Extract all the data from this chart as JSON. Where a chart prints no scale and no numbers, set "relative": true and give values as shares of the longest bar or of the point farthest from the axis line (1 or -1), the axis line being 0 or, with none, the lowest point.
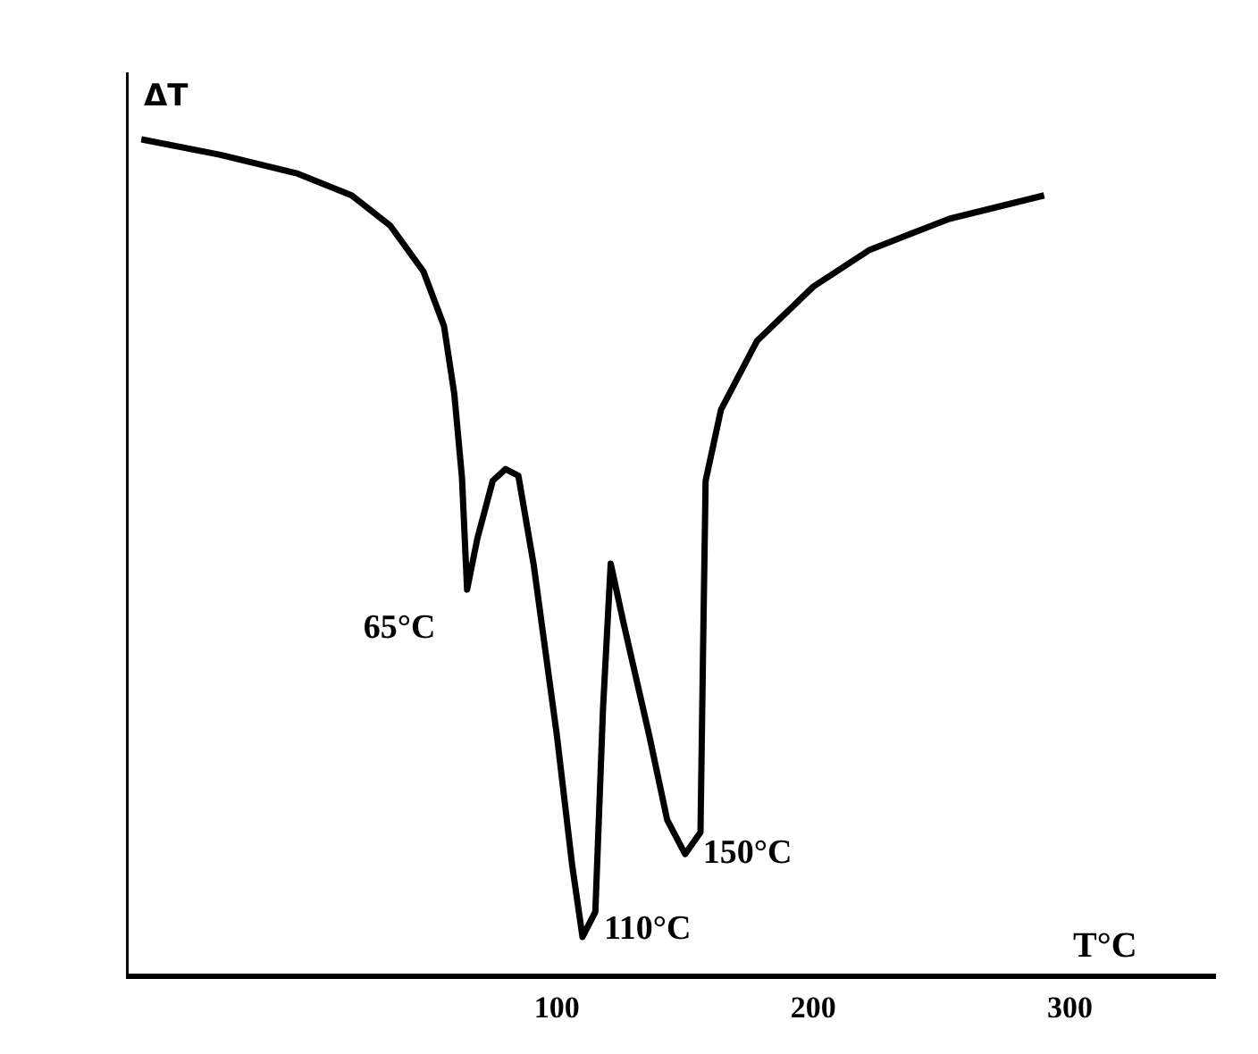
{
  "chart_data": {
    "type": "line",
    "relative": true,
    "xlabel": "T°C",
    "ylabel": "ΔT",
    "x": [
      -62,
      -32,
      -1,
      20,
      35,
      48,
      56,
      60,
      63,
      65,
      69,
      75,
      80,
      85,
      91,
      100,
      106,
      110,
      115,
      118,
      121,
      126,
      136,
      143,
      150,
      156,
      157,
      158,
      164,
      178,
      200,
      222,
      253,
      290
    ],
    "series": [
      {
        "color": "#000000",
        "values": [
          1.0,
          0.982,
          0.959,
          0.933,
          0.897,
          0.842,
          0.777,
          0.696,
          0.596,
          0.462,
          0.523,
          0.592,
          0.606,
          0.598,
          0.491,
          0.288,
          0.132,
          0.047,
          0.077,
          0.32,
          0.493,
          0.422,
          0.288,
          0.187,
          0.146,
          0.172,
          0.389,
          0.592,
          0.677,
          0.759,
          0.824,
          0.868,
          0.905,
          0.933
        ]
      }
    ],
    "xlim": [
      -68,
      357
    ],
    "xticks": [
      100,
      200,
      300
    ],
    "tick_labels": "x",
    "grid": false,
    "marker": "none",
    "line_style": "solid",
    "annotations": [
      {
        "text": "65°C",
        "x": 65,
        "y": 0.462
      },
      {
        "text": "110°C",
        "x": 110,
        "y": 0.047
      },
      {
        "text": "150°C",
        "x": 150,
        "y": 0.146
      }
    ]
  }
}
